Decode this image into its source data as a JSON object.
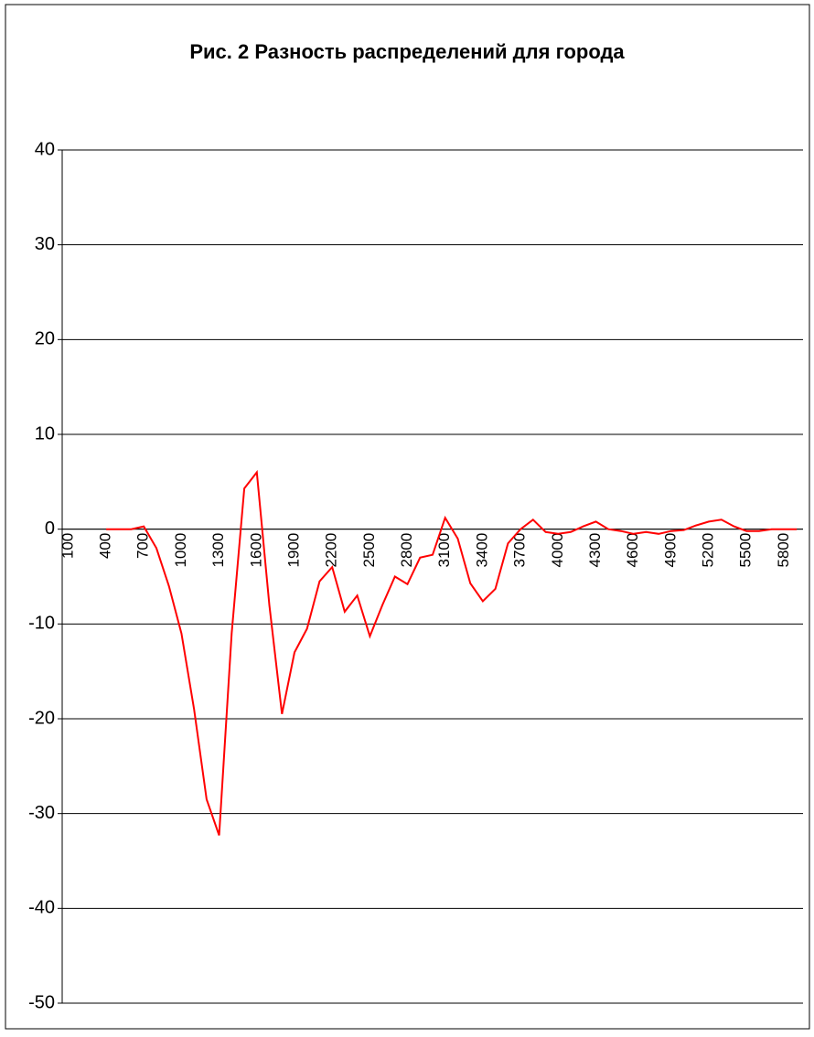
{
  "chart_data": {
    "type": "line",
    "title": "Рис. 2 Разность распределений для города",
    "categories": [
      "100",
      null,
      null,
      "400",
      null,
      null,
      "700",
      null,
      null,
      "1000",
      null,
      null,
      "1300",
      null,
      null,
      "1600",
      null,
      null,
      "1900",
      null,
      null,
      "2200",
      null,
      null,
      "2500",
      null,
      null,
      "2800",
      null,
      null,
      "3100",
      null,
      null,
      "3400",
      null,
      null,
      "3700",
      null,
      null,
      "4000",
      null,
      null,
      "4300",
      null,
      null,
      "4600",
      null,
      null,
      "4900",
      null,
      null,
      "5200",
      null,
      null,
      "5500",
      null,
      null,
      "5800",
      null
    ],
    "series": [
      {
        "color": "#ff0000",
        "values": [
          null,
          null,
          null,
          0,
          0,
          0,
          0.3,
          -2,
          -6,
          -11,
          -19,
          -28.5,
          -32.3,
          -11,
          4.3,
          6,
          -8,
          -19.5,
          -13,
          -10.5,
          -5.5,
          -4,
          -8.7,
          -7,
          -11.3,
          -8,
          -5,
          -5.8,
          -3,
          -2.7,
          1.2,
          -1,
          -5.7,
          -7.6,
          -6.3,
          -1.5,
          0,
          1,
          -0.3,
          -0.5,
          -0.3,
          0.3,
          0.8,
          0,
          -0.2,
          -0.5,
          -0.3,
          -0.5,
          -0.2,
          -0.1,
          0.4,
          0.8,
          1,
          0.3,
          -0.2,
          -0.2,
          0,
          0,
          0
        ]
      }
    ],
    "ylim": [
      -50,
      40
    ],
    "yticks": [
      -50,
      -40,
      -30,
      -20,
      -10,
      0,
      10,
      20,
      30,
      40
    ],
    "grid": true
  }
}
